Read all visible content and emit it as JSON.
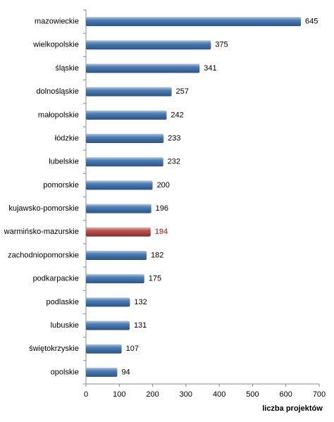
{
  "chart_data": {
    "type": "bar",
    "orientation": "horizontal",
    "categories": [
      "mazowieckie",
      "wielkopolskie",
      "śląskie",
      "dolnośląskie",
      "małopolskie",
      "łódzkie",
      "lubelskie",
      "pomorskie",
      "kujawsko-pomorskie",
      "warmińsko-mazurskie",
      "zachodniopomorskie",
      "podkarpackie",
      "podlaskie",
      "lubuskie",
      "świętokrzyskie",
      "opolskie"
    ],
    "values": [
      645,
      375,
      341,
      257,
      242,
      233,
      232,
      200,
      196,
      194,
      182,
      175,
      132,
      131,
      107,
      94
    ],
    "color": "#4a7ebb",
    "highlight": {
      "category": "warmińsko-mazurskie",
      "color": "#c0504d"
    },
    "x_label": "liczba projektów",
    "xlim": [
      0,
      700
    ],
    "xticks": [
      0,
      100,
      200,
      300,
      400,
      500,
      600,
      700
    ],
    "grid": false
  }
}
